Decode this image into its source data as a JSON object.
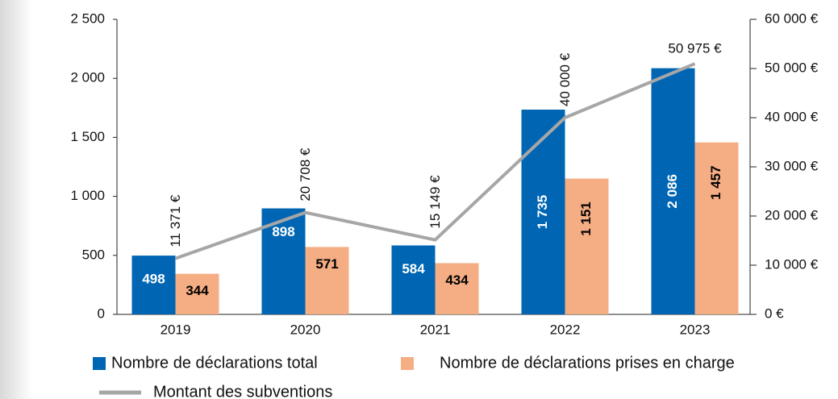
{
  "chart_data": {
    "type": "bar",
    "categories": [
      "2019",
      "2020",
      "2021",
      "2022",
      "2023"
    ],
    "series": [
      {
        "name": "Nombre de déclarations total",
        "color": "#0066b3",
        "values": [
          498,
          898,
          584,
          1735,
          2086
        ],
        "value_labels": [
          "498",
          "898",
          "584",
          "1 735",
          "2 086"
        ]
      },
      {
        "name": "Nombre de déclarations prises en charge",
        "color": "#f5ad84",
        "values": [
          344,
          571,
          434,
          1151,
          1457
        ],
        "value_labels": [
          "344",
          "571",
          "434",
          "1 151",
          "1 457"
        ]
      },
      {
        "name": "Montant des subventions",
        "type": "line",
        "axis": "y2",
        "color": "#a6a6a6",
        "values": [
          11371,
          20708,
          15149,
          40000,
          50975
        ],
        "value_labels": [
          "11 371 €",
          "20 708 €",
          "15 149 €",
          "40 000 €",
          "50 975 €"
        ]
      }
    ],
    "ylim": [
      0,
      2500
    ],
    "yticks": [
      0,
      500,
      {
        "value": 1000,
        "label": "1 000"
      },
      {
        "value": 1500,
        "label": "1 500"
      },
      {
        "value": 2000,
        "label": "2 000"
      },
      {
        "value": 2500,
        "label": "2 500"
      }
    ],
    "y2lim": [
      0,
      60000
    ],
    "y2ticks": [
      {
        "value": 0,
        "label": "0 €"
      },
      {
        "value": 10000,
        "label": "10 000 €"
      },
      {
        "value": 20000,
        "label": "20 000 €"
      },
      {
        "value": 30000,
        "label": "30 000 €"
      },
      {
        "value": 40000,
        "label": "40 000 €"
      },
      {
        "value": 50000,
        "label": "50 000 €"
      },
      {
        "value": 60000,
        "label": "60 000 €"
      }
    ],
    "legend": "bottom"
  }
}
